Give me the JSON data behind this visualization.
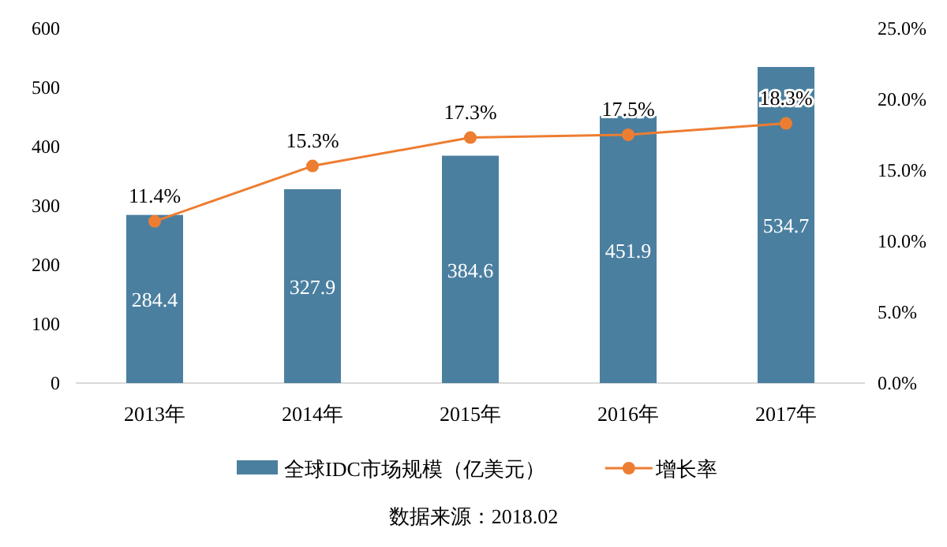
{
  "chart_data": {
    "type": "bar",
    "categories": [
      "2013年",
      "2014年",
      "2015年",
      "2016年",
      "2017年"
    ],
    "series": [
      {
        "name": "全球IDC市场规模（亿美元）",
        "color": "#4a7fa0",
        "values": [
          284.4,
          327.9,
          384.6,
          451.9,
          534.7
        ],
        "value_labels": [
          "284.4",
          "327.9",
          "384.6",
          "451.9",
          "534.7"
        ]
      },
      {
        "name": "增长率",
        "type": "line",
        "axis": "y2",
        "color": "#ed7d31",
        "marker": "circle",
        "line_style": "solid",
        "values": [
          11.4,
          15.3,
          17.3,
          17.5,
          18.3
        ],
        "value_labels": [
          "11.4%",
          "15.3%",
          "17.3%",
          "17.5%",
          "18.3%"
        ]
      }
    ],
    "ylim": [
      0,
      600
    ],
    "yticks": [
      0,
      100,
      200,
      300,
      400,
      500,
      600
    ],
    "y2lim": [
      0,
      25
    ],
    "y2ticks": [
      {
        "value": 0,
        "label": "0.0%"
      },
      {
        "value": 5,
        "label": "5.0%"
      },
      {
        "value": 10,
        "label": "10.0%"
      },
      {
        "value": 15,
        "label": "15.0%"
      },
      {
        "value": 20,
        "label": "20.0%"
      },
      {
        "value": 25,
        "label": "25.0%"
      }
    ],
    "legend": "bottom",
    "annotations": [
      "数据来源：2018.02"
    ]
  }
}
